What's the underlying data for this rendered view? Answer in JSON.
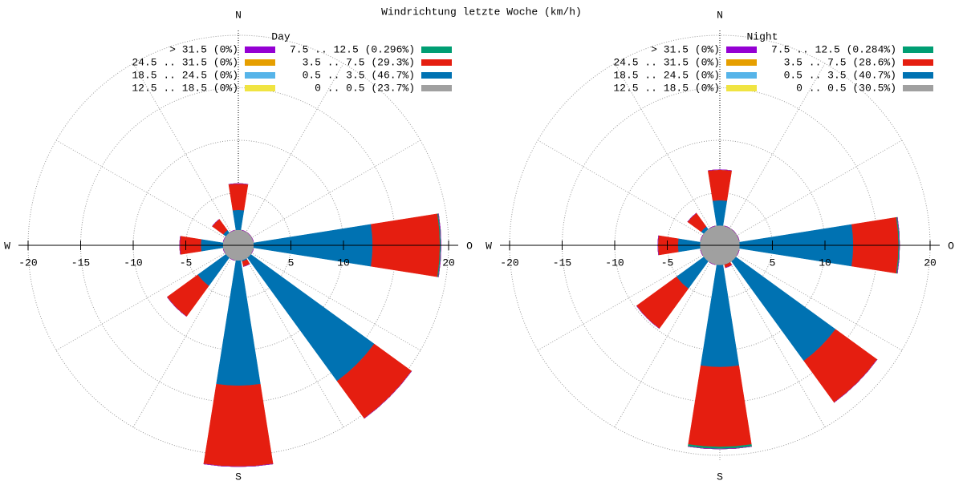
{
  "title": "Windrichtung letzte Woche (km/h)",
  "chart_data": [
    {
      "type": "windrose",
      "title": "Day",
      "x": [
        0,
        22.5,
        45,
        67.5,
        90,
        112.5,
        135,
        157.5,
        180,
        202.5,
        225,
        247.5,
        270,
        292.5,
        315,
        337.5
      ],
      "rlim": [
        0,
        20
      ],
      "rticks": [
        5,
        10,
        15,
        20
      ],
      "xticks": [
        -20,
        -15,
        -10,
        -5,
        5,
        10,
        20
      ],
      "compass": [
        "N",
        "O",
        "S",
        "W"
      ],
      "series": [
        {
          "name": "0 .. 0.5 (23.7%)",
          "color": "#a0a0a0",
          "values": [
            1.48,
            1.48,
            1.48,
            1.48,
            1.48,
            1.48,
            1.48,
            1.48,
            1.48,
            1.48,
            1.48,
            1.48,
            1.48,
            1.48,
            1.48,
            1.48
          ]
        },
        {
          "name": "0.5 .. 3.5 (46.7%)",
          "color": "#0072b2",
          "values": [
            1.9,
            0,
            0,
            0,
            11.3,
            0,
            14.5,
            0.1,
            11.9,
            0,
            3.3,
            0,
            2.1,
            0,
            0.3,
            0
          ]
        },
        {
          "name": "3.5 .. 7.5 (29.3%)",
          "color": "#e51e10",
          "values": [
            2.5,
            0,
            0,
            0,
            6.4,
            0,
            4.4,
            0.5,
            7.7,
            0,
            3.6,
            0,
            2.0,
            0,
            1.3,
            0
          ]
        },
        {
          "name": "7.5 .. 12.5 (0.296%)",
          "color": "#009e73",
          "values": [
            0,
            0,
            0,
            0,
            0.1,
            0,
            0,
            0,
            0,
            0,
            0,
            0,
            0,
            0,
            0,
            0
          ]
        },
        {
          "name": "12.5 .. 18.5 (0%)",
          "color": "#f0e442",
          "values": [
            0,
            0,
            0,
            0,
            0,
            0,
            0,
            0,
            0,
            0,
            0,
            0,
            0,
            0,
            0,
            0
          ]
        },
        {
          "name": "18.5 .. 24.5 (0%)",
          "color": "#56b4e9",
          "values": [
            0,
            0,
            0,
            0,
            0,
            0,
            0,
            0,
            0,
            0,
            0,
            0,
            0,
            0,
            0,
            0
          ]
        },
        {
          "name": "24.5 .. 31.5 (0%)",
          "color": "#e69f00",
          "values": [
            0,
            0,
            0,
            0,
            0,
            0,
            0,
            0,
            0,
            0,
            0,
            0,
            0,
            0,
            0,
            0
          ]
        },
        {
          "name": "> 31.5 (0%)",
          "color": "#9400d3",
          "values": [
            0,
            0,
            0,
            0,
            0,
            0,
            0,
            0,
            0,
            0,
            0,
            0,
            0,
            0,
            0,
            0
          ]
        }
      ]
    },
    {
      "type": "windrose",
      "title": "Night",
      "x": [
        0,
        22.5,
        45,
        67.5,
        90,
        112.5,
        135,
        157.5,
        180,
        202.5,
        225,
        247.5,
        270,
        292.5,
        315,
        337.5
      ],
      "rlim": [
        0,
        20
      ],
      "rticks": [
        5,
        10,
        15,
        20
      ],
      "xticks": [
        -20,
        -15,
        -10,
        -5,
        5,
        10,
        20
      ],
      "compass": [
        "N",
        "O",
        "S",
        "W"
      ],
      "series": [
        {
          "name": "0 .. 0.5 (30.5%)",
          "color": "#a0a0a0",
          "values": [
            1.9,
            1.9,
            1.9,
            1.9,
            1.9,
            1.9,
            1.9,
            1.9,
            1.9,
            1.9,
            1.9,
            1.9,
            1.9,
            1.9,
            1.9,
            1.9
          ]
        },
        {
          "name": "0.5 .. 3.5 (40.7%)",
          "color": "#0072b2",
          "values": [
            2.4,
            0,
            0,
            0,
            10.8,
            0,
            11.7,
            0,
            9.7,
            0,
            3.2,
            0,
            2.1,
            0,
            0.3,
            0
          ]
        },
        {
          "name": "3.5 .. 7.5 (28.6%)",
          "color": "#e51e10",
          "values": [
            2.9,
            0,
            0,
            0,
            4.3,
            0,
            4.9,
            0.3,
            7.6,
            0,
            4.7,
            0,
            1.9,
            0,
            1.6,
            0
          ]
        },
        {
          "name": "7.5 .. 12.5 (0.284%)",
          "color": "#009e73",
          "values": [
            0,
            0,
            0,
            0,
            0.1,
            0,
            0,
            0,
            0.2,
            0,
            0,
            0,
            0,
            0,
            0,
            0
          ]
        },
        {
          "name": "12.5 .. 18.5 (0%)",
          "color": "#f0e442",
          "values": [
            0,
            0,
            0,
            0,
            0,
            0,
            0,
            0,
            0,
            0,
            0,
            0,
            0,
            0,
            0,
            0
          ]
        },
        {
          "name": "18.5 .. 24.5 (0%)",
          "color": "#56b4e9",
          "values": [
            0,
            0,
            0,
            0,
            0,
            0,
            0,
            0,
            0,
            0,
            0,
            0,
            0,
            0,
            0,
            0
          ]
        },
        {
          "name": "24.5 .. 31.5 (0%)",
          "color": "#e69f00",
          "values": [
            0,
            0,
            0,
            0,
            0,
            0,
            0,
            0,
            0,
            0,
            0,
            0,
            0,
            0,
            0,
            0
          ]
        },
        {
          "name": "> 31.5 (0%)",
          "color": "#9400d3",
          "values": [
            0,
            0,
            0,
            0,
            0,
            0,
            0,
            0,
            0,
            0,
            0,
            0,
            0,
            0,
            0,
            0
          ]
        }
      ]
    }
  ]
}
